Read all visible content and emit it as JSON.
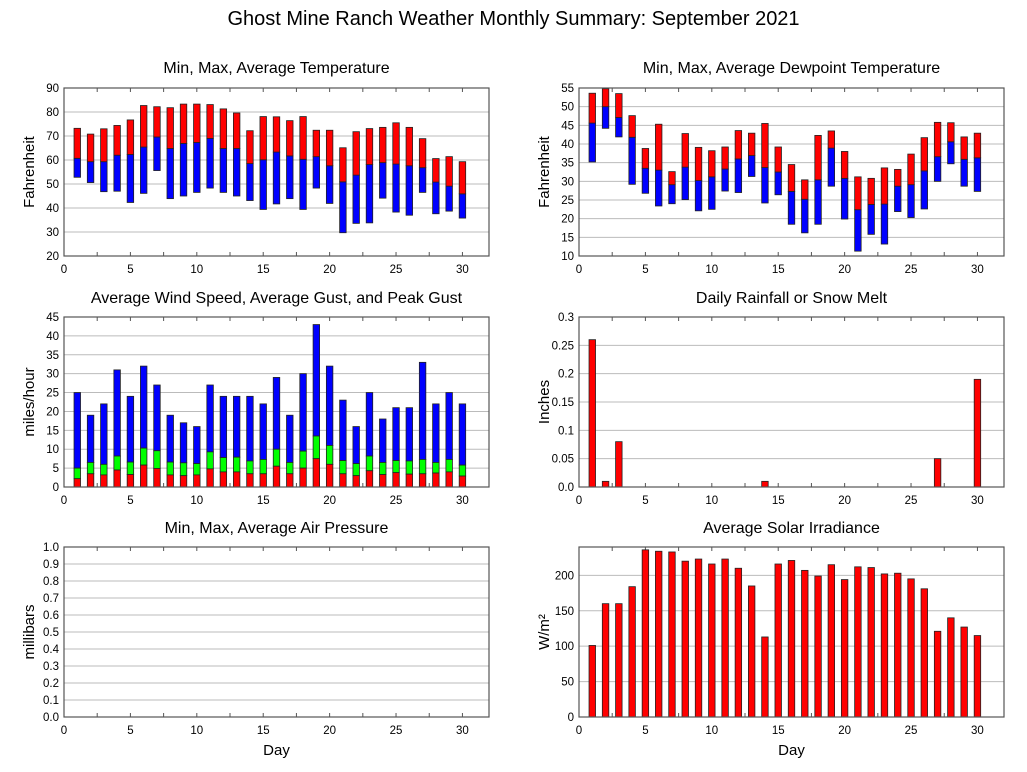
{
  "title": "Ghost Mine Ranch Weather Monthly Summary: September 2021",
  "chart_data": [
    {
      "id": "temperature",
      "type": "bar",
      "title": "Min, Max, Average Temperature",
      "xlabel": "",
      "ylabel": "Fahrenheit",
      "xlim": [
        0,
        32
      ],
      "ylim": [
        20,
        90
      ],
      "xticks": [
        0,
        5,
        10,
        15,
        20,
        25,
        30
      ],
      "yticks": [
        20,
        30,
        40,
        50,
        60,
        70,
        80,
        90
      ],
      "grid": true,
      "x": [
        1,
        2,
        3,
        4,
        5,
        6,
        7,
        8,
        9,
        10,
        11,
        12,
        13,
        14,
        15,
        16,
        17,
        18,
        19,
        20,
        21,
        22,
        23,
        24,
        25,
        26,
        27,
        28,
        29,
        30
      ],
      "series": [
        {
          "name": "Min",
          "color": "#0000ff",
          "values": [
            52.8,
            50.6,
            46.8,
            47.0,
            42.3,
            46.1,
            55.6,
            43.9,
            45.0,
            46.5,
            48.3,
            46.5,
            45.0,
            43.1,
            39.4,
            41.7,
            43.9,
            39.4,
            48.3,
            41.9,
            29.7,
            33.6,
            33.8,
            44.1,
            38.3,
            37.0,
            46.5,
            37.6,
            38.7,
            35.8
          ]
        },
        {
          "name": "Average",
          "color": "#0000ff",
          "values": [
            60.7,
            59.3,
            59.3,
            62.0,
            62.3,
            65.4,
            69.6,
            64.8,
            66.9,
            67.3,
            69.0,
            64.8,
            64.8,
            58.5,
            60.1,
            63.3,
            61.7,
            60.3,
            61.4,
            57.6,
            50.9,
            53.7,
            58.1,
            58.9,
            58.3,
            57.6,
            56.8,
            50.8,
            49.1,
            45.9
          ]
        },
        {
          "name": "Max",
          "color": "#ff0000",
          "values": [
            73.2,
            70.8,
            73.0,
            74.4,
            76.7,
            82.7,
            82.2,
            81.8,
            83.3,
            83.3,
            83.1,
            81.3,
            79.6,
            72.2,
            78.1,
            78.0,
            76.4,
            78.1,
            72.4,
            72.4,
            65.1,
            71.8,
            73.1,
            73.6,
            75.5,
            73.6,
            68.9,
            60.6,
            61.4,
            59.3
          ]
        }
      ]
    },
    {
      "id": "dewpoint",
      "type": "bar",
      "title": "Min, Max, Average Dewpoint Temperature",
      "xlabel": "",
      "ylabel": "Fahrenheit",
      "xlim": [
        0,
        32
      ],
      "ylim": [
        10,
        55
      ],
      "xticks": [
        0,
        5,
        10,
        15,
        20,
        25,
        30
      ],
      "yticks": [
        10,
        15,
        20,
        25,
        30,
        35,
        40,
        45,
        50,
        55
      ],
      "grid": true,
      "x": [
        1,
        2,
        3,
        4,
        5,
        6,
        7,
        8,
        9,
        10,
        11,
        12,
        13,
        14,
        15,
        16,
        17,
        18,
        19,
        20,
        21,
        22,
        23,
        24,
        25,
        26,
        27,
        28,
        29,
        30
      ],
      "series": [
        {
          "name": "Min",
          "color": "#0000ff",
          "values": [
            35.2,
            44.2,
            41.9,
            29.2,
            26.8,
            23.4,
            24.0,
            25.1,
            22.1,
            22.5,
            27.4,
            27.0,
            31.3,
            24.2,
            26.4,
            18.5,
            16.2,
            18.5,
            28.7,
            19.9,
            11.3,
            15.8,
            13.2,
            21.9,
            20.3,
            22.6,
            30.0,
            34.7,
            28.7,
            27.3
          ]
        },
        {
          "name": "Average",
          "color": "#0000ff",
          "values": [
            45.6,
            50.0,
            47.1,
            41.8,
            33.5,
            33.0,
            29.1,
            33.8,
            30.2,
            31.2,
            33.3,
            36.0,
            36.9,
            33.7,
            32.5,
            27.3,
            25.2,
            30.4,
            38.9,
            30.8,
            22.4,
            23.8,
            23.9,
            28.7,
            29.1,
            32.8,
            36.6,
            40.6,
            35.9,
            36.3
          ]
        },
        {
          "name": "Max",
          "color": "#ff0000",
          "values": [
            53.6,
            54.8,
            53.5,
            47.6,
            38.8,
            45.3,
            32.6,
            42.8,
            39.1,
            38.2,
            39.2,
            43.6,
            42.9,
            45.5,
            39.2,
            34.5,
            30.4,
            42.3,
            43.5,
            38.0,
            31.2,
            30.8,
            33.6,
            33.2,
            37.3,
            41.7,
            45.8,
            45.7,
            41.9,
            42.9
          ]
        }
      ]
    },
    {
      "id": "wind",
      "type": "bar",
      "title": "Average Wind Speed, Average Gust, and Peak Gust",
      "xlabel": "",
      "ylabel": "miles/hour",
      "xlim": [
        0,
        32
      ],
      "ylim": [
        0,
        45
      ],
      "xticks": [
        0,
        5,
        10,
        15,
        20,
        25,
        30
      ],
      "yticks": [
        0,
        5,
        10,
        15,
        20,
        25,
        30,
        35,
        40,
        45
      ],
      "grid": true,
      "x": [
        1,
        2,
        3,
        4,
        5,
        6,
        7,
        8,
        9,
        10,
        11,
        12,
        13,
        14,
        15,
        16,
        17,
        18,
        19,
        20,
        21,
        22,
        23,
        24,
        25,
        26,
        27,
        28,
        29,
        30
      ],
      "series": [
        {
          "name": "Average Wind Speed",
          "color": "#ff0000",
          "values": [
            2.2,
            3.5,
            3.2,
            4.5,
            3.3,
            5.8,
            4.9,
            3.2,
            3.0,
            3.2,
            4.8,
            4.0,
            4.0,
            3.5,
            3.5,
            5.5,
            3.5,
            5.0,
            7.5,
            6.0,
            3.5,
            3.0,
            4.3,
            3.3,
            3.8,
            3.4,
            3.5,
            3.7,
            4.0,
            2.9
          ]
        },
        {
          "name": "Average Gust",
          "color": "#00ff00",
          "values": [
            5.0,
            6.5,
            6.0,
            8.2,
            6.6,
            10.3,
            9.6,
            6.6,
            6.4,
            6.2,
            9.3,
            7.8,
            7.9,
            6.9,
            7.3,
            10.0,
            6.5,
            9.5,
            13.5,
            11.0,
            7.0,
            6.2,
            8.2,
            6.5,
            7.0,
            6.9,
            7.3,
            6.5,
            7.3,
            5.8
          ]
        },
        {
          "name": "Peak Gust",
          "color": "#0000ff",
          "values": [
            25,
            19,
            22,
            31,
            24,
            32,
            27,
            19,
            17,
            16,
            27,
            24,
            24,
            24,
            22,
            29,
            19,
            30,
            43,
            32,
            23,
            16,
            25,
            18,
            21,
            21,
            33,
            22,
            25,
            22
          ]
        }
      ]
    },
    {
      "id": "rainfall",
      "type": "bar",
      "title": "Daily Rainfall or Snow Melt",
      "xlabel": "",
      "ylabel": "Inches",
      "xlim": [
        0,
        32
      ],
      "ylim": [
        0,
        0.3
      ],
      "xticks": [
        0,
        5,
        10,
        15,
        20,
        25,
        30
      ],
      "yticks": [
        "0.0",
        "0.05",
        "0.1",
        "0.15",
        "0.2",
        "0.25",
        "0.3"
      ],
      "grid": true,
      "x": [
        1,
        2,
        3,
        4,
        5,
        6,
        7,
        8,
        9,
        10,
        11,
        12,
        13,
        14,
        15,
        16,
        17,
        18,
        19,
        20,
        21,
        22,
        23,
        24,
        25,
        26,
        27,
        28,
        29,
        30
      ],
      "series": [
        {
          "name": "Rainfall",
          "color": "#ff0000",
          "values": [
            0.26,
            0.01,
            0.08,
            0,
            0,
            0,
            0,
            0,
            0,
            0,
            0,
            0,
            0,
            0.01,
            0,
            0,
            0,
            0,
            0,
            0,
            0,
            0,
            0,
            0,
            0,
            0,
            0.05,
            0,
            0,
            0.19
          ]
        }
      ]
    },
    {
      "id": "pressure",
      "type": "bar",
      "title": "Min, Max, Average Air Pressure",
      "xlabel": "Day",
      "ylabel": "millibars",
      "xlim": [
        0,
        32
      ],
      "ylim": [
        0,
        1
      ],
      "xticks": [
        0,
        5,
        10,
        15,
        20,
        25,
        30
      ],
      "yticks": [
        "0.0",
        "0.1",
        "0.2",
        "0.3",
        "0.4",
        "0.5",
        "0.6",
        "0.7",
        "0.8",
        "0.9",
        "1.0"
      ],
      "grid": true,
      "x": [],
      "series": []
    },
    {
      "id": "solar",
      "type": "bar",
      "title": "Average Solar Irradiance",
      "xlabel": "Day",
      "ylabel": "W/m²",
      "xlim": [
        0,
        32
      ],
      "ylim": [
        0,
        240
      ],
      "xticks": [
        0,
        5,
        10,
        15,
        20,
        25,
        30
      ],
      "yticks": [
        0,
        50,
        100,
        150,
        200
      ],
      "grid": true,
      "x": [
        1,
        2,
        3,
        4,
        5,
        6,
        7,
        8,
        9,
        10,
        11,
        12,
        13,
        14,
        15,
        16,
        17,
        18,
        19,
        20,
        21,
        22,
        23,
        24,
        25,
        26,
        27,
        28,
        29,
        30
      ],
      "series": [
        {
          "name": "Solar Irradiance",
          "color": "#ff0000",
          "values": [
            101,
            160,
            160,
            184,
            236,
            234,
            233,
            220,
            223,
            216,
            223,
            210,
            185,
            113,
            216,
            221,
            207,
            199,
            215,
            194,
            212,
            211,
            202,
            203,
            195,
            181,
            121,
            140,
            127,
            115
          ]
        }
      ]
    }
  ]
}
